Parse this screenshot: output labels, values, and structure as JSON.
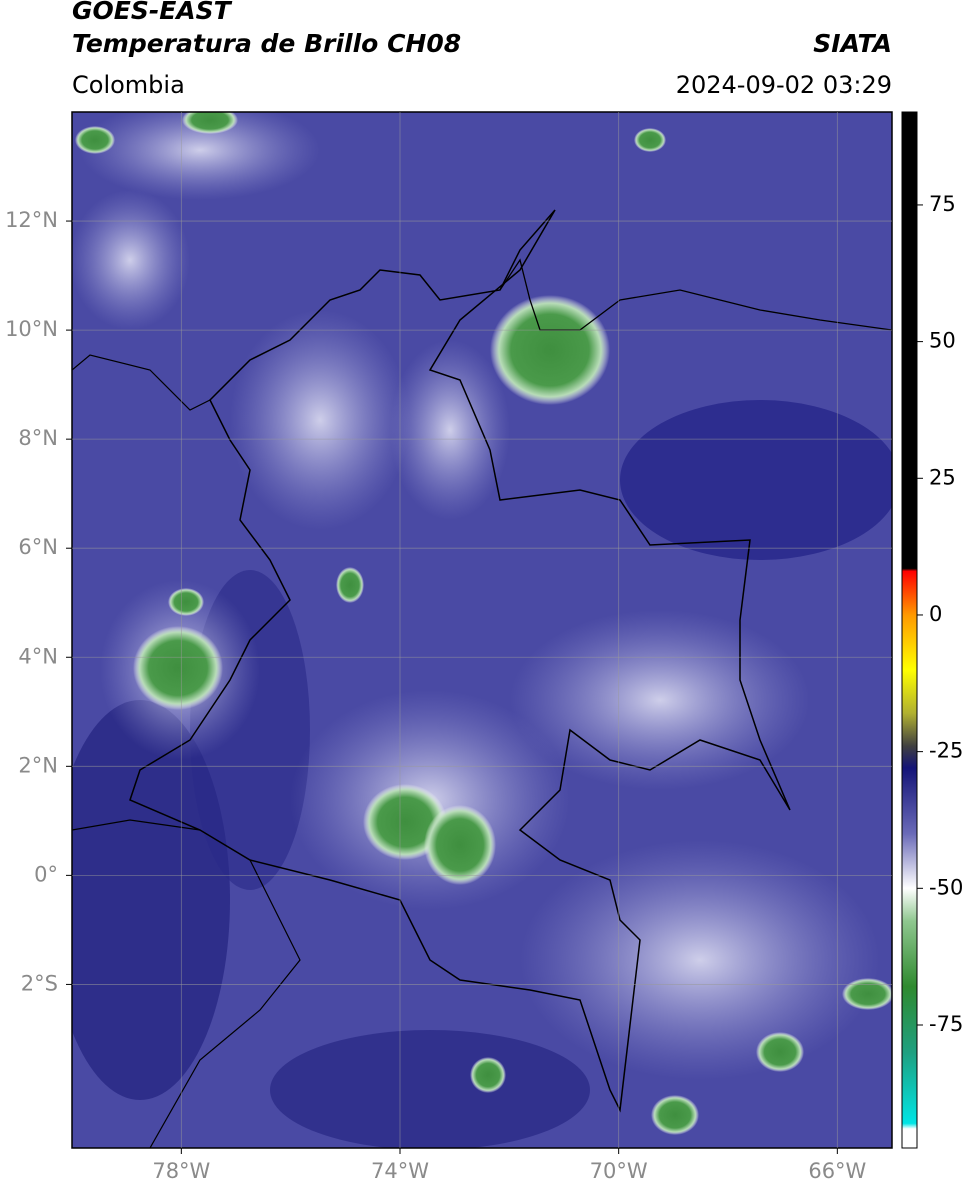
{
  "chart_data": {
    "type": "map",
    "title": "GOES-EAST",
    "subtitle": "Temperatura de Brillo CH08",
    "source": "SIATA",
    "region": "Colombia",
    "timestamp": "2024-09-02 03:29",
    "xlim": [
      -80,
      -65
    ],
    "ylim": [
      -5,
      14
    ],
    "xticks": [
      {
        "value": -78,
        "label": "78°W"
      },
      {
        "value": -74,
        "label": "74°W"
      },
      {
        "value": -70,
        "label": "70°W"
      },
      {
        "value": -66,
        "label": "66°W"
      }
    ],
    "yticks": [
      {
        "value": 12,
        "label": "12°N"
      },
      {
        "value": 10,
        "label": "10°N"
      },
      {
        "value": 8,
        "label": "8°N"
      },
      {
        "value": 6,
        "label": "6°N"
      },
      {
        "value": 4,
        "label": "4°N"
      },
      {
        "value": 2,
        "label": "2°N"
      },
      {
        "value": 0,
        "label": "0°"
      },
      {
        "value": -2,
        "label": "2°S"
      }
    ],
    "grid": true,
    "colorbar": {
      "range": [
        -97.5,
        92
      ],
      "ticks": [
        75,
        50,
        25,
        0,
        -25,
        -50,
        -75
      ],
      "stops": [
        {
          "value": -97.5,
          "color": "#ffffff"
        },
        {
          "value": -94,
          "color": "#ffffff"
        },
        {
          "value": -93,
          "color": "#00e5e5"
        },
        {
          "value": -80,
          "color": "#1fa080"
        },
        {
          "value": -68,
          "color": "#2f8a2f"
        },
        {
          "value": -56,
          "color": "#8fc78f"
        },
        {
          "value": -50,
          "color": "#ffffff"
        },
        {
          "value": -40,
          "color": "#6a6ab8"
        },
        {
          "value": -28,
          "color": "#141478"
        },
        {
          "value": -24,
          "color": "#404040"
        },
        {
          "value": -18,
          "color": "#b0b030"
        },
        {
          "value": -10,
          "color": "#ffff00"
        },
        {
          "value": 0,
          "color": "#ff9900"
        },
        {
          "value": 8,
          "color": "#ff0000"
        },
        {
          "value": 8.5,
          "color": "#000000"
        },
        {
          "value": 92,
          "color": "#000000"
        }
      ]
    }
  }
}
